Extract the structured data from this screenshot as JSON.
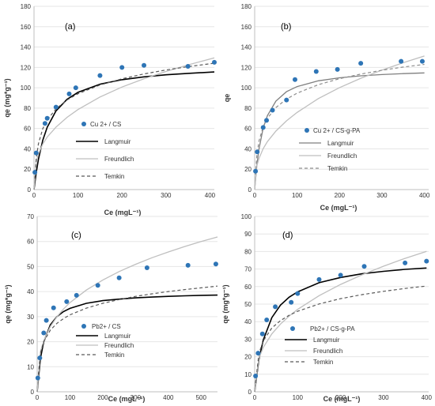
{
  "figure": {
    "panels": [
      {
        "tag": "(a)",
        "x_label": "Ce (mgL⁻¹)",
        "y_label": "qe (mg*g⁻¹)",
        "x_ticks": [
          0,
          100,
          200,
          300,
          400
        ],
        "y_ticks": [
          0,
          20,
          40,
          60,
          80,
          100,
          120,
          140,
          160,
          180
        ],
        "legend": {
          "points": "Cu 2+ / CS",
          "langmuir": "Langmuir",
          "freundlich": "Freundlich",
          "temkin": "Temkin"
        }
      },
      {
        "tag": "(b)",
        "x_label": "Ce (mgL⁻¹)",
        "y_label": "qe",
        "x_ticks": [
          0,
          100,
          200,
          300,
          400
        ],
        "y_ticks": [
          0,
          20,
          40,
          60,
          80,
          100,
          120,
          140,
          160,
          180
        ],
        "legend": {
          "points": "Cu 2+ / CS-g-PA",
          "langmuir": "Langmuir",
          "freundlich": "Freundlich",
          "temkin": "Temkin"
        }
      },
      {
        "tag": "(c)",
        "x_label": "Ce (mgL⁻¹)",
        "y_label": "qe (mg*g⁻¹)",
        "x_ticks": [
          0,
          100,
          200,
          300,
          400,
          500
        ],
        "y_ticks": [
          0,
          10,
          20,
          30,
          40,
          50,
          60,
          70
        ],
        "legend": {
          "points": "Pb2+ / CS",
          "langmuir": "Langmuir",
          "freundlich": "Freundlich",
          "temkin": "Temkin"
        }
      },
      {
        "tag": "(d)",
        "x_label": "Ce (mgL⁻¹)",
        "y_label": "qe (mg*g⁻¹)",
        "x_ticks": [
          0,
          100,
          200,
          300,
          400
        ],
        "y_ticks": [
          0,
          10,
          20,
          30,
          40,
          50,
          60,
          70,
          80,
          90,
          100
        ],
        "legend": {
          "points": "Pb2+ / CS-g-PA",
          "langmuir": "Langmuir",
          "freundlich": "Freundlich",
          "temkin": "Temkin"
        }
      }
    ]
  },
  "colors": {
    "points": "#2E75B6",
    "langmuir": "#000000",
    "langmuir_b": "#7F7F7F",
    "freundlich": "#BFBFBF",
    "temkin": "#595959",
    "temkin_b": "#8C8C8C",
    "axis": "#BFBFBF",
    "grid": "#E6E6E6",
    "text": "#333333"
  },
  "chart_data": [
    {
      "type": "scatter",
      "xlabel": "Ce (mgL⁻¹)",
      "ylabel": "qe (mg*g⁻¹)",
      "xlim": [
        0,
        410
      ],
      "ylim": [
        0,
        180
      ],
      "series": [
        {
          "name": "Cu 2+ / CS",
          "x": [
            2,
            5,
            25,
            30,
            50,
            80,
            95,
            150,
            200,
            250,
            350,
            410
          ],
          "y": [
            17,
            36,
            65,
            70,
            81,
            94,
            100,
            112,
            120,
            122,
            121,
            125
          ]
        },
        {
          "name": "Langmuir",
          "kind": "line",
          "style": "solid",
          "x": [
            0,
            5,
            10,
            20,
            30,
            50,
            75,
            100,
            150,
            200,
            250,
            300,
            350,
            410
          ],
          "y": [
            0,
            16.7,
            29.8,
            48.5,
            61.2,
            77.3,
            88.6,
            95.5,
            103.5,
            107.9,
            110.7,
            112.7,
            114.1,
            115.5
          ]
        },
        {
          "name": "Freundlich",
          "kind": "line",
          "style": "solid",
          "x": [
            0,
            5,
            10,
            20,
            30,
            50,
            75,
            100,
            150,
            200,
            250,
            300,
            350,
            410
          ],
          "y": [
            0,
            27.4,
            35.0,
            44.8,
            51.6,
            61.4,
            70.9,
            78.6,
            90.9,
            100.7,
            108.8,
            116.0,
            122.4,
            129.4
          ]
        },
        {
          "name": "Temkin",
          "kind": "line",
          "style": "dashed",
          "x": [
            2,
            5,
            10,
            20,
            30,
            50,
            75,
            100,
            150,
            200,
            250,
            300,
            350,
            410
          ],
          "y": [
            10.9,
            30.4,
            45.1,
            59.8,
            68.4,
            79.3,
            88.0,
            94.1,
            102.7,
            108.8,
            113.6,
            117.5,
            120.7,
            124.1
          ]
        }
      ]
    },
    {
      "type": "scatter",
      "xlabel": "Ce (mgL⁻¹)",
      "ylabel": "qe",
      "xlim": [
        0,
        410
      ],
      "ylim": [
        0,
        180
      ],
      "series": [
        {
          "name": "Cu 2+ / CS-g-PA",
          "x": [
            2,
            6,
            20,
            28,
            42,
            75,
            95,
            145,
            195,
            250,
            345,
            395
          ],
          "y": [
            18,
            37,
            61,
            68,
            78,
            88,
            108,
            116,
            118,
            124,
            126,
            126
          ]
        },
        {
          "name": "Langmuir",
          "kind": "line",
          "style": "solid",
          "x": [
            0,
            5,
            10,
            20,
            30,
            50,
            75,
            100,
            150,
            200,
            250,
            300,
            350,
            400
          ],
          "y": [
            0,
            23.5,
            39.6,
            60.3,
            72.6,
            86.9,
            96.1,
            101.2,
            106.8,
            109.8,
            111.7,
            113.0,
            113.9,
            114.6
          ]
        },
        {
          "name": "Freundlich",
          "kind": "line",
          "style": "solid",
          "x": [
            0,
            5,
            10,
            20,
            30,
            50,
            75,
            100,
            150,
            200,
            250,
            300,
            350,
            400
          ],
          "y": [
            0,
            23.2,
            30.4,
            40.1,
            47.1,
            57.4,
            67.5,
            75.8,
            89.4,
            100.2,
            109.3,
            117.4,
            124.6,
            131.2
          ]
        },
        {
          "name": "Temkin",
          "kind": "line",
          "style": "dashed",
          "x": [
            2,
            5,
            10,
            20,
            30,
            50,
            75,
            100,
            150,
            200,
            250,
            300,
            350,
            400
          ],
          "y": [
            14.5,
            33.3,
            47.5,
            61.7,
            70.0,
            80.5,
            88.8,
            94.7,
            103.0,
            108.9,
            113.4,
            117.2,
            120.3,
            123.0
          ]
        }
      ]
    },
    {
      "type": "scatter",
      "xlabel": "Ce (mgL⁻¹)",
      "ylabel": "qe (mg*g⁻¹)",
      "xlim": [
        0,
        550
      ],
      "ylim": [
        0,
        70
      ],
      "series": [
        {
          "name": "Pb2+ / CS",
          "x": [
            2,
            8,
            20,
            28,
            50,
            90,
            120,
            185,
            250,
            335,
            460,
            545
          ],
          "y": [
            5.5,
            13.5,
            23.5,
            28.5,
            33.5,
            36,
            38.5,
            42.5,
            45.5,
            49.5,
            50.5,
            51
          ]
        },
        {
          "name": "Langmuir",
          "kind": "line",
          "style": "solid",
          "x": [
            0,
            10,
            20,
            40,
            60,
            80,
            100,
            150,
            200,
            250,
            300,
            350,
            400,
            450,
            500,
            550
          ],
          "y": [
            0,
            13.3,
            20.0,
            26.7,
            30.0,
            32.0,
            33.3,
            35.3,
            36.4,
            37.0,
            37.5,
            37.8,
            38.1,
            38.3,
            38.5,
            38.6
          ]
        },
        {
          "name": "Freundlich",
          "kind": "line",
          "style": "solid",
          "x": [
            0,
            10,
            20,
            40,
            60,
            80,
            100,
            150,
            200,
            250,
            300,
            350,
            400,
            450,
            500,
            550
          ],
          "y": [
            0,
            16.0,
            20.4,
            26.0,
            29.9,
            33.0,
            35.6,
            40.6,
            44.6,
            48.0,
            50.9,
            53.5,
            55.8,
            58.0,
            60.0,
            61.8
          ]
        },
        {
          "name": "Temkin",
          "kind": "line",
          "style": "dashed",
          "x": [
            2,
            10,
            20,
            40,
            60,
            80,
            100,
            150,
            200,
            250,
            300,
            350,
            400,
            450,
            500,
            550
          ],
          "y": [
            4.6,
            15.3,
            20.0,
            24.6,
            27.3,
            29.2,
            30.7,
            33.4,
            35.3,
            36.8,
            38.1,
            39.1,
            40.0,
            40.8,
            41.5,
            42.2
          ]
        }
      ]
    },
    {
      "type": "scatter",
      "xlabel": "Ce (mgL⁻¹)",
      "ylabel": "qe (mg*g⁻¹)",
      "xlim": [
        0,
        405
      ],
      "ylim": [
        0,
        100
      ],
      "series": [
        {
          "name": "Pb2+ / CS-g-PA",
          "x": [
            2,
            8,
            18,
            28,
            48,
            85,
            100,
            150,
            200,
            255,
            350,
            400
          ],
          "y": [
            9,
            22,
            33,
            41,
            48.5,
            51,
            56,
            64,
            66.5,
            71.5,
            73.5,
            74.5
          ]
        },
        {
          "name": "Langmuir",
          "kind": "line",
          "style": "solid",
          "x": [
            0,
            10,
            20,
            40,
            60,
            80,
            100,
            150,
            200,
            250,
            300,
            350,
            400
          ],
          "y": [
            0,
            18.5,
            29.6,
            42.3,
            49.4,
            53.9,
            57.0,
            62.2,
            65.2,
            67.3,
            68.7,
            69.8,
            70.6
          ]
        },
        {
          "name": "Freundlich",
          "kind": "line",
          "style": "solid",
          "x": [
            0,
            10,
            20,
            40,
            60,
            80,
            100,
            150,
            200,
            250,
            300,
            350,
            400
          ],
          "y": [
            0,
            19.3,
            25.3,
            33.0,
            38.6,
            43.1,
            47.0,
            54.8,
            61.2,
            66.7,
            71.6,
            76.1,
            80.1
          ]
        },
        {
          "name": "Temkin",
          "kind": "line",
          "style": "dashed",
          "x": [
            2,
            10,
            20,
            40,
            60,
            80,
            100,
            150,
            200,
            250,
            300,
            350,
            400
          ],
          "y": [
            5.0,
            21.9,
            29.1,
            36.4,
            40.6,
            43.6,
            45.9,
            50.1,
            53.1,
            55.4,
            57.3,
            58.9,
            60.3
          ]
        }
      ]
    }
  ]
}
